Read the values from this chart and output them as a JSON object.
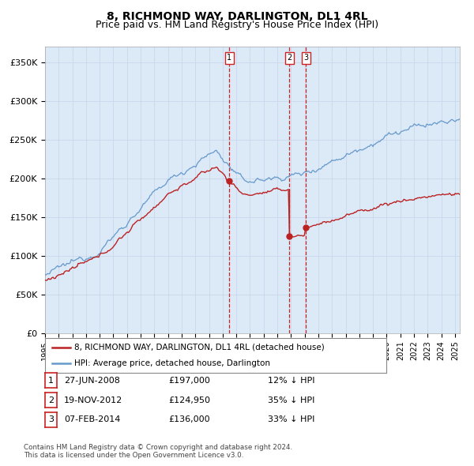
{
  "title": "8, RICHMOND WAY, DARLINGTON, DL1 4RL",
  "subtitle": "Price paid vs. HM Land Registry's House Price Index (HPI)",
  "ylim": [
    0,
    370000
  ],
  "yticks": [
    0,
    50000,
    100000,
    150000,
    200000,
    250000,
    300000,
    350000
  ],
  "ytick_labels": [
    "£0",
    "£50K",
    "£100K",
    "£150K",
    "£200K",
    "£250K",
    "£300K",
    "£350K"
  ],
  "bg_color": "#dce9f7",
  "grid_color": "#c8d8ec",
  "hpi_color": "#6699cc",
  "price_color": "#bb2222",
  "vline_color": "#cc0000",
  "transactions": [
    {
      "date_num": 2008.49,
      "price": 197000,
      "label": "1"
    },
    {
      "date_num": 2012.89,
      "price": 124950,
      "label": "2"
    },
    {
      "date_num": 2014.09,
      "price": 136000,
      "label": "3"
    }
  ],
  "legend_entries": [
    "8, RICHMOND WAY, DARLINGTON, DL1 4RL (detached house)",
    "HPI: Average price, detached house, Darlington"
  ],
  "table_rows": [
    [
      "1",
      "27-JUN-2008",
      "£197,000",
      "12% ↓ HPI"
    ],
    [
      "2",
      "19-NOV-2012",
      "£124,950",
      "35% ↓ HPI"
    ],
    [
      "3",
      "07-FEB-2014",
      "£136,000",
      "33% ↓ HPI"
    ]
  ],
  "footer": "Contains HM Land Registry data © Crown copyright and database right 2024.\nThis data is licensed under the Open Government Licence v3.0.",
  "title_fontsize": 10,
  "subtitle_fontsize": 9,
  "tick_fontsize": 8
}
